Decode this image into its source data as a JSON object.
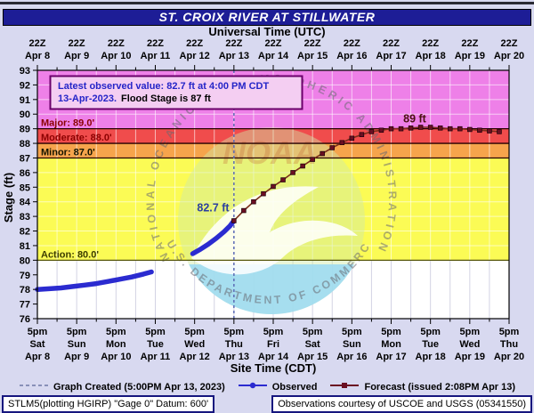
{
  "title": "ST. CROIX RIVER AT STILLWATER",
  "top_axis": {
    "label": "Universal Time (UTC)",
    "tick_time": "22Z",
    "dates": [
      "Apr 8",
      "Apr 9",
      "Apr 10",
      "Apr 11",
      "Apr 12",
      "Apr 13",
      "Apr 14",
      "Apr 15",
      "Apr 16",
      "Apr 17",
      "Apr 18",
      "Apr 19",
      "Apr 20"
    ]
  },
  "bottom_axis": {
    "label": "Site Time (CDT)",
    "tick_time": "5pm",
    "days": [
      "Sat",
      "Sun",
      "Mon",
      "Tue",
      "Wed",
      "Thu",
      "Fri",
      "Sat",
      "Sun",
      "Mon",
      "Tue",
      "Wed",
      "Thu"
    ],
    "dates": [
      "Apr 8",
      "Apr 9",
      "Apr 10",
      "Apr 11",
      "Apr 12",
      "Apr 13",
      "Apr 14",
      "Apr 15",
      "Apr 16",
      "Apr 17",
      "Apr 18",
      "Apr 19",
      "Apr 20"
    ]
  },
  "y_axis": {
    "label": "Stage (ft)",
    "min": 76,
    "max": 93,
    "tick_step": 1
  },
  "info_box": {
    "line1": "Latest observed value: 82.7 ft at 4:00 PM CDT",
    "line2_date": "13-Apr-2023.",
    "line2_flood": "Flood Stage is 87 ft"
  },
  "watermark": {
    "ring_text": "NATIONAL OCEANIC AND ATMOSPHERIC ADMINISTRATION",
    "bottom_text": "U.S. DEPARTMENT OF COMMERCE",
    "wordmark": "NOAA"
  },
  "legend": {
    "items": [
      {
        "type": "dashed",
        "label": "Graph Created (5:00PM Apr 13, 2023)",
        "color": "#8890b8"
      },
      {
        "type": "line-dot",
        "label": "Observed",
        "color": "#2b2bd0"
      },
      {
        "type": "line-square",
        "label": "Forecast (issued 2:08PM Apr 13)",
        "color": "#6b0f22"
      }
    ]
  },
  "footer": {
    "left": "STLM5(plotting HGIRP) \"Gage 0\" Datum: 600'",
    "right": "Observations courtesy of USCOE and USGS (05341550)"
  },
  "chart_data": {
    "type": "line",
    "title": "ST. CROIX RIVER AT STILLWATER",
    "xlabel_top": "Universal Time (UTC)",
    "xlabel_bottom": "Site Time (CDT)",
    "ylabel": "Stage (ft)",
    "ylim": [
      76,
      93
    ],
    "x_unit": "days from Apr 8 5pm CDT",
    "x_range": [
      0,
      12
    ],
    "grid": "half-day vertical, 1-ft horizontal, white",
    "legend_position": "bottom",
    "flood_stage_ft": 87,
    "latest_observed": {
      "stage_ft": 82.7,
      "time": "4:00 PM CDT 13-Apr-2023"
    },
    "forecast_crest_ft": 89,
    "bands": [
      {
        "name": "major-flood",
        "from": 89,
        "to": 93,
        "color": "#ee80e8"
      },
      {
        "name": "moderate-flood",
        "from": 88,
        "to": 89,
        "color": "#f04c4c"
      },
      {
        "name": "minor-flood",
        "from": 87,
        "to": 88,
        "color": "#f6a44c"
      },
      {
        "name": "action",
        "from": 80,
        "to": 87,
        "color": "#fbfb55"
      },
      {
        "name": "normal",
        "from": 76,
        "to": 80,
        "color": "#ffffff"
      }
    ],
    "thresholds": [
      {
        "label": "Major: 89.0'",
        "value": 89.0,
        "label_color": "#8b0000",
        "line_color": "#240000"
      },
      {
        "label": "Moderate: 88.0'",
        "value": 88.0,
        "label_color": "#8b0000",
        "line_color": "#240000"
      },
      {
        "label": "Minor: 87.0'",
        "value": 87.0,
        "label_color": "#141400",
        "line_color": "#240000"
      },
      {
        "label": "Action: 80.0'",
        "value": 80.0,
        "label_color": "#3c3c00",
        "line_color": "#55550a"
      }
    ],
    "graph_created_x_days": 5.0,
    "series": [
      {
        "name": "Observed",
        "color": "#2b2bd0",
        "marker": "dot",
        "segments": [
          [
            [
              0,
              78.0
            ],
            [
              0.3,
              78.05
            ],
            [
              0.6,
              78.1
            ],
            [
              0.9,
              78.2
            ],
            [
              1.2,
              78.3
            ],
            [
              1.5,
              78.4
            ],
            [
              1.8,
              78.55
            ],
            [
              2.1,
              78.7
            ],
            [
              2.4,
              78.85
            ],
            [
              2.7,
              79.05
            ],
            [
              2.9,
              79.2
            ]
          ],
          [
            [
              3.95,
              80.45
            ],
            [
              4.15,
              80.75
            ],
            [
              4.35,
              81.1
            ],
            [
              4.55,
              81.5
            ],
            [
              4.75,
              81.95
            ],
            [
              4.9,
              82.35
            ],
            [
              5.0,
              82.7
            ]
          ]
        ]
      },
      {
        "name": "Forecast",
        "color": "#6b0f22",
        "line_color": "#7b2d1a",
        "marker": "square",
        "points": [
          [
            5.0,
            82.7
          ],
          [
            5.25,
            83.4
          ],
          [
            5.5,
            84.0
          ],
          [
            5.75,
            84.55
          ],
          [
            6.0,
            85.05
          ],
          [
            6.25,
            85.5
          ],
          [
            6.5,
            86.0
          ],
          [
            6.75,
            86.45
          ],
          [
            7.0,
            86.9
          ],
          [
            7.25,
            87.3
          ],
          [
            7.5,
            87.7
          ],
          [
            7.75,
            88.05
          ],
          [
            8.0,
            88.35
          ],
          [
            8.25,
            88.6
          ],
          [
            8.5,
            88.8
          ],
          [
            8.75,
            88.9
          ],
          [
            9.0,
            89.0
          ],
          [
            9.25,
            89.0
          ],
          [
            9.5,
            89.05
          ],
          [
            9.75,
            89.1
          ],
          [
            10.0,
            89.1
          ],
          [
            10.25,
            89.05
          ],
          [
            10.5,
            89.0
          ],
          [
            10.75,
            89.0
          ],
          [
            11.0,
            88.95
          ],
          [
            11.25,
            88.9
          ],
          [
            11.5,
            88.85
          ],
          [
            11.75,
            88.8
          ]
        ]
      }
    ],
    "annotations": [
      {
        "text": "82.7 ft",
        "x_days": 4.88,
        "y_ft": 83.35,
        "color": "#2b3fa0",
        "anchor": "end"
      },
      {
        "text": "89 ft",
        "x_days": 9.6,
        "y_ft": 89.45,
        "color": "#4a1010",
        "anchor": "middle"
      }
    ]
  }
}
